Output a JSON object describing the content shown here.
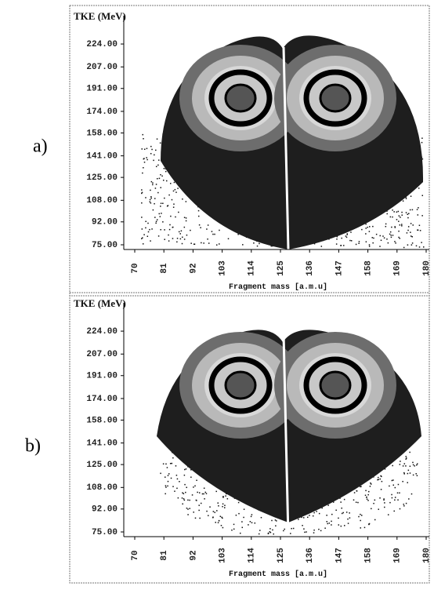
{
  "chart_data": [
    {
      "type": "contour",
      "panel_label": "a)",
      "ylabel": "TKE (MeV)",
      "xlabel": "Fragment mass [a.m.u]",
      "xlim": [
        70,
        180
      ],
      "xticks": [
        70,
        81,
        92,
        103,
        114,
        125,
        136,
        147,
        158,
        169,
        180
      ],
      "ylim": [
        71.5,
        245
      ],
      "yticks": [
        {
          "value": 75,
          "label": "75.00"
        },
        {
          "value": 92,
          "label": "92.00"
        },
        {
          "value": 108,
          "label": "108.00"
        },
        {
          "value": 125,
          "label": "125.00"
        },
        {
          "value": 141,
          "label": "141.00"
        },
        {
          "value": 158,
          "label": "158.00"
        },
        {
          "value": 174,
          "label": "174.00"
        },
        {
          "value": 191,
          "label": "191.00"
        },
        {
          "value": 207,
          "label": "207.00"
        },
        {
          "value": 224,
          "label": "224.00"
        }
      ]
    },
    {
      "type": "contour",
      "panel_label": "b)",
      "ylabel": "TKE (MeV)",
      "xlabel": "Fragment mass [a.m.u]",
      "xlim": [
        70,
        180
      ],
      "xticks": [
        70,
        81,
        92,
        103,
        114,
        125,
        136,
        147,
        158,
        169,
        180
      ],
      "ylim": [
        71.5,
        245
      ],
      "yticks": [
        {
          "value": 75,
          "label": "75.00"
        },
        {
          "value": 92,
          "label": "92.00"
        },
        {
          "value": 108,
          "label": "108.00"
        },
        {
          "value": 125,
          "label": "125.00"
        },
        {
          "value": 141,
          "label": "141.00"
        },
        {
          "value": 158,
          "label": "158.00"
        },
        {
          "value": 174,
          "label": "174.00"
        },
        {
          "value": 191,
          "label": "191.00"
        },
        {
          "value": 207,
          "label": "207.00"
        },
        {
          "value": 224,
          "label": "224.00"
        }
      ]
    }
  ]
}
